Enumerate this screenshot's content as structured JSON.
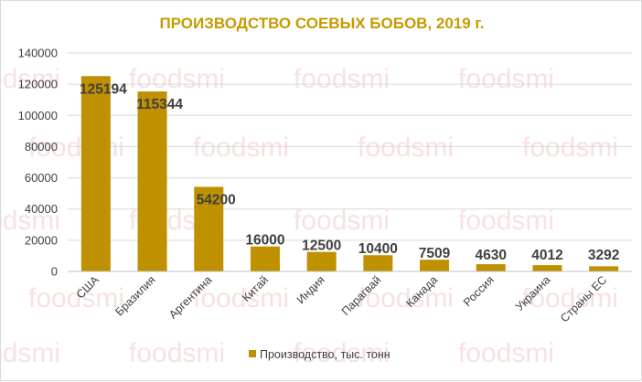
{
  "colors": {
    "bar": "#BF9000",
    "title": "#C79A00",
    "grid": "#D9D9D9",
    "axis": "#BFBFBF",
    "text": "#404040",
    "watermark": "#F2C9C9"
  },
  "watermark": {
    "text": "foodsmi"
  },
  "chart_data": {
    "type": "bar",
    "title": "ПРОИЗВОДСТВО СОЕВЫХ БОБОВ, 2019 г.",
    "categories": [
      "США",
      "Бразилия",
      "Аргентина",
      "Китай",
      "Индия",
      "Парагвай",
      "Канада",
      "Россия",
      "Украина",
      "Страны ЕС"
    ],
    "series": [
      {
        "name": "Производство, тыс. тонн",
        "values": [
          125194,
          115344,
          54200,
          16000,
          12500,
          10400,
          7509,
          4630,
          4012,
          3292
        ],
        "labels": [
          "125194",
          "115344",
          "54200",
          "16000",
          "12500",
          "10400",
          "7509",
          "4630",
          "4012",
          "3292"
        ]
      }
    ],
    "ylim": [
      0,
      140000
    ],
    "yticks": [
      0,
      20000,
      40000,
      60000,
      80000,
      100000,
      120000,
      140000
    ],
    "ytick_labels": [
      "0",
      "20000",
      "40000",
      "60000",
      "80000",
      "100000",
      "120000",
      "140000"
    ],
    "grid": true,
    "legend": "bottom"
  }
}
